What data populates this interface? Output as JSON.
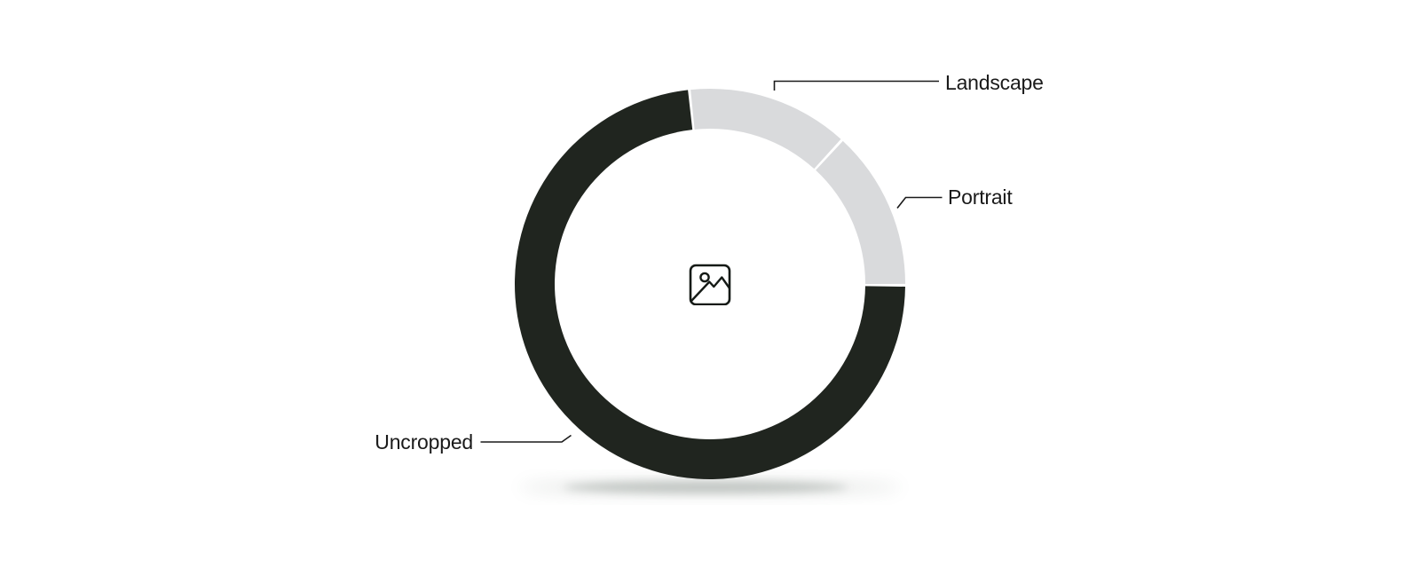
{
  "chart_data": {
    "type": "pie",
    "variant": "donut",
    "title": "",
    "categories": [
      "Landscape",
      "Portrait",
      "Uncropped"
    ],
    "values": [
      13.5,
      13.3,
      73.2
    ],
    "unit": "percent_estimated_from_arc_angles",
    "series": [
      {
        "name": "Landscape",
        "value": 13.5,
        "color": "#d9dadc"
      },
      {
        "name": "Portrait",
        "value": 13.3,
        "color": "#d9dadc"
      },
      {
        "name": "Uncropped",
        "value": 73.2,
        "color": "#20251f"
      }
    ],
    "colors": [
      "#d9dadc",
      "#d9dadc",
      "#20251f"
    ],
    "start_angle_deg": -6.1,
    "legend_position": "callout-labels",
    "grid": false,
    "center_icon": "image-icon",
    "label_color": "#1a1a1a",
    "background_color": "#ffffff"
  }
}
